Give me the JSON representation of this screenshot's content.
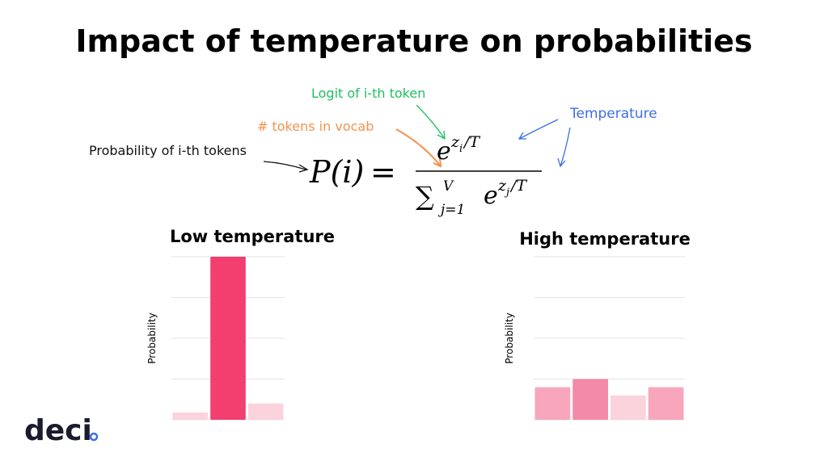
{
  "title": "Impact of temperature on probabilities",
  "annotations": {
    "probability": "Probability of i-th tokens",
    "logit": "Logit of i-th token",
    "vocab": "# tokens in vocab",
    "temperature": "Temperature"
  },
  "formula": {
    "lhs": "P(i)",
    "equals": "=",
    "num_base": "e",
    "num_exp": "z",
    "num_sub": "i",
    "num_rest": "/T",
    "sum": "∑",
    "sum_upper": "V",
    "sum_lower": "j=1",
    "den_base": "e",
    "den_exp": "z",
    "den_sub": "j",
    "den_rest": "/T"
  },
  "logo": "deci",
  "chart_data": [
    {
      "type": "bar",
      "title": "Low temperature",
      "y_label": "Probability",
      "categories": [
        null,
        null,
        null
      ],
      "values": [
        0.045,
        1.0,
        0.1
      ],
      "colors": [
        "#fbd3dd",
        "#f23f6f",
        "#fbd3dd"
      ],
      "ylim": [
        0,
        1
      ],
      "grid_lines": [
        0,
        0.25,
        0.5,
        0.75,
        1
      ],
      "grid": true
    },
    {
      "type": "bar",
      "title": "High temperature",
      "y_label": "Probability",
      "categories": [
        null,
        null,
        null,
        null
      ],
      "values": [
        0.2,
        0.25,
        0.15,
        0.2
      ],
      "colors": [
        "#f7a6bc",
        "#f38aa7",
        "#fbd3dd",
        "#f7a6bc"
      ],
      "ylim": [
        0,
        1
      ],
      "grid_lines": [
        0,
        0.25,
        0.5,
        0.75,
        1
      ],
      "grid": true
    }
  ]
}
